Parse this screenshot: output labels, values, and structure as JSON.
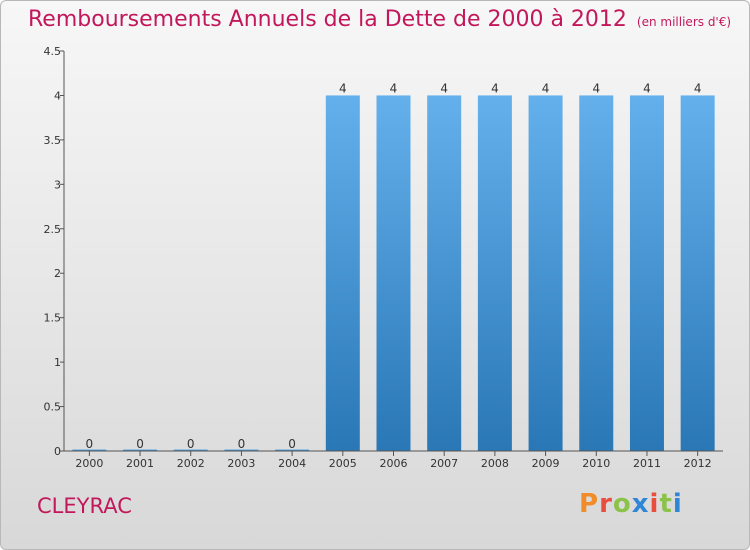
{
  "title": "Remboursements Annuels de la Dette de 2000 à 2012",
  "unit": "(en milliers d'€)",
  "place": "CLEYRAC",
  "brand": {
    "letters": [
      "P",
      "r",
      "o",
      "x",
      "i",
      "t",
      "i"
    ],
    "colors": [
      "#f28c28",
      "#e94e3d",
      "#8bc34a",
      "#2f86d6",
      "#e94e3d",
      "#8bc34a",
      "#2f86d6"
    ]
  },
  "colors": {
    "accent": "#c2185b",
    "bar_light": "#63b0ec",
    "bar_dark": "#2a77b6",
    "axis": "#555555"
  },
  "chart_data": {
    "type": "bar",
    "categories": [
      "2000",
      "2001",
      "2002",
      "2003",
      "2004",
      "2005",
      "2006",
      "2007",
      "2008",
      "2009",
      "2010",
      "2011",
      "2012"
    ],
    "values": [
      0,
      0,
      0,
      0,
      0,
      4,
      4,
      4,
      4,
      4,
      4,
      4,
      4
    ],
    "data_labels": [
      "0",
      "0",
      "0",
      "0",
      "0",
      "4",
      "4",
      "4",
      "4",
      "4",
      "4",
      "4",
      "4"
    ],
    "yticks": [
      "0",
      "0.5",
      "1",
      "1.5",
      "2",
      "2.5",
      "3",
      "3.5",
      "4",
      "4.5"
    ],
    "ytick_values": [
      0,
      0.5,
      1,
      1.5,
      2,
      2.5,
      3,
      3.5,
      4,
      4.5
    ],
    "ylim": [
      0,
      4.5
    ],
    "title": "Remboursements Annuels de la Dette de 2000 à 2012",
    "xlabel": "",
    "ylabel": "",
    "grid": false,
    "legend": "none"
  }
}
